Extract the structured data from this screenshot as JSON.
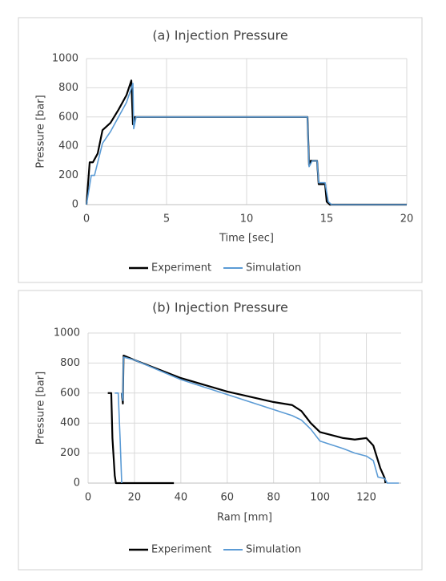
{
  "chart_data": [
    {
      "type": "line",
      "title": "(a) Injection Pressure",
      "x_label": "Time [sec]",
      "y_label": "Pressure [bar]",
      "xlim": [
        0,
        20
      ],
      "xticks": [
        0,
        5,
        10,
        15,
        20
      ],
      "ylim": [
        0,
        1000
      ],
      "yticks": [
        0,
        200,
        400,
        600,
        800,
        1000
      ],
      "grid": true,
      "legend": "bottom",
      "series": [
        {
          "name": "Experiment",
          "color": "#000000",
          "x": [
            0,
            0.2,
            0.4,
            0.7,
            1,
            1.5,
            2,
            2.5,
            2.8,
            2.9,
            3,
            13.8,
            13.9,
            14,
            14.4,
            14.5,
            14.9,
            15,
            15.2,
            20
          ],
          "values": [
            0,
            290,
            290,
            350,
            510,
            560,
            650,
            750,
            850,
            550,
            600,
            600,
            270,
            300,
            300,
            140,
            140,
            20,
            0,
            0
          ]
        },
        {
          "name": "Simulation",
          "color": "#5b9bd5",
          "x": [
            0,
            0.3,
            0.5,
            1,
            1.5,
            2,
            2.5,
            2.9,
            2.95,
            3.1,
            13.8,
            13.9,
            14.1,
            14.4,
            14.5,
            14.9,
            15.1,
            15.3,
            20
          ],
          "values": [
            0,
            200,
            200,
            420,
            500,
            600,
            700,
            830,
            520,
            600,
            600,
            260,
            300,
            300,
            150,
            150,
            20,
            0,
            0
          ]
        }
      ]
    },
    {
      "type": "line",
      "title": "(b) Injection Pressure",
      "x_label": "Ram [mm]",
      "y_label": "Pressure [bar]",
      "xlim": [
        0,
        135
      ],
      "xticks": [
        0,
        20,
        40,
        60,
        80,
        100,
        120
      ],
      "ylim": [
        0,
        1000
      ],
      "yticks": [
        0,
        200,
        400,
        600,
        800,
        1000
      ],
      "grid": true,
      "legend": "bottom",
      "series": [
        {
          "name": "Experiment",
          "color": "#000000",
          "x": [
            8.5,
            10,
            10.5,
            11.5,
            12,
            37,
            null,
            14.5,
            15,
            15.3,
            20,
            40,
            60,
            80,
            88,
            92,
            96,
            100,
            110,
            115,
            120,
            123,
            126,
            128,
            128.2
          ],
          "values": [
            600,
            600,
            300,
            50,
            0,
            0,
            null,
            600,
            530,
            850,
            820,
            700,
            610,
            540,
            520,
            480,
            400,
            340,
            300,
            290,
            300,
            250,
            100,
            30,
            0
          ]
        },
        {
          "name": "Simulation",
          "color": "#5b9bd5",
          "x": [
            11.5,
            13,
            13.8,
            14.5,
            null,
            14.5,
            15,
            15.3,
            20,
            40,
            60,
            80,
            88,
            92,
            96,
            100,
            110,
            115,
            120,
            123,
            125,
            128,
            129,
            134
          ],
          "values": [
            600,
            600,
            300,
            0,
            null,
            600,
            550,
            840,
            820,
            690,
            590,
            490,
            450,
            420,
            360,
            280,
            230,
            200,
            180,
            150,
            40,
            30,
            0,
            0
          ]
        }
      ]
    }
  ]
}
